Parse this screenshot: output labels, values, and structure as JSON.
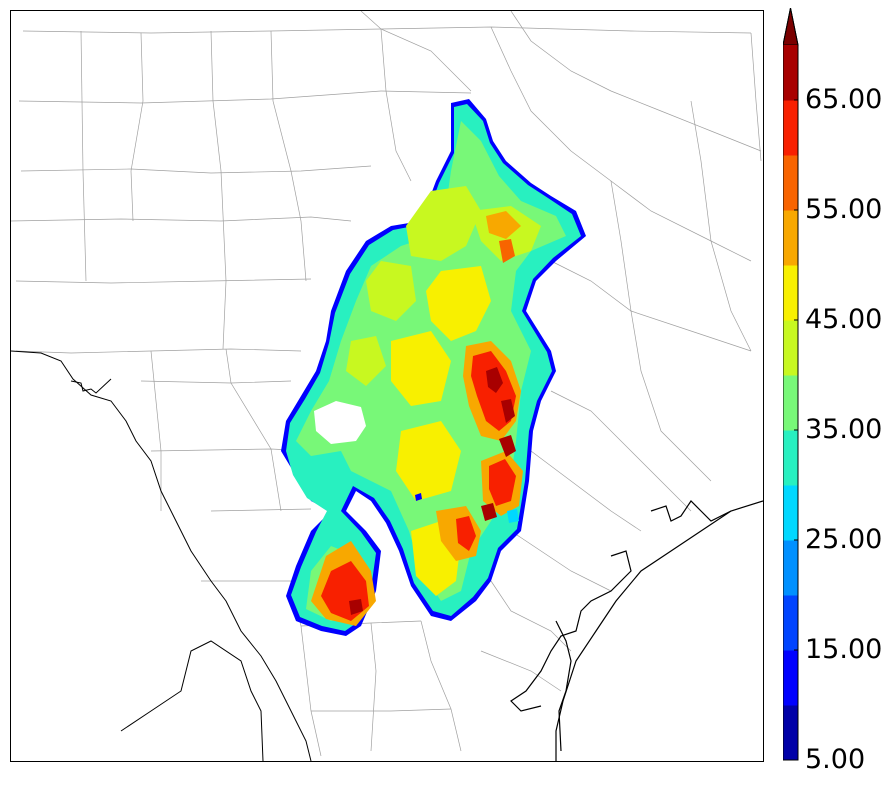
{
  "colorbar": {
    "tick_labels": [
      "5.00",
      "15.00",
      "25.00",
      "35.00",
      "45.00",
      "55.00",
      "65.00"
    ],
    "colors": [
      "#0000a8",
      "#0000ff",
      "#0044ff",
      "#0090ff",
      "#00d8ff",
      "#28f0c0",
      "#78f878",
      "#c8f820",
      "#f8f000",
      "#f8a800",
      "#f86400",
      "#f82000",
      "#a80000"
    ],
    "extend_color": "#7a0000",
    "extend": "max"
  },
  "map": {
    "background": "#ffffff",
    "county_line_color": "#999999",
    "coastline_color": "#000000"
  },
  "legend_icons": [
    "colorbar-extend-arrow-icon"
  ]
}
